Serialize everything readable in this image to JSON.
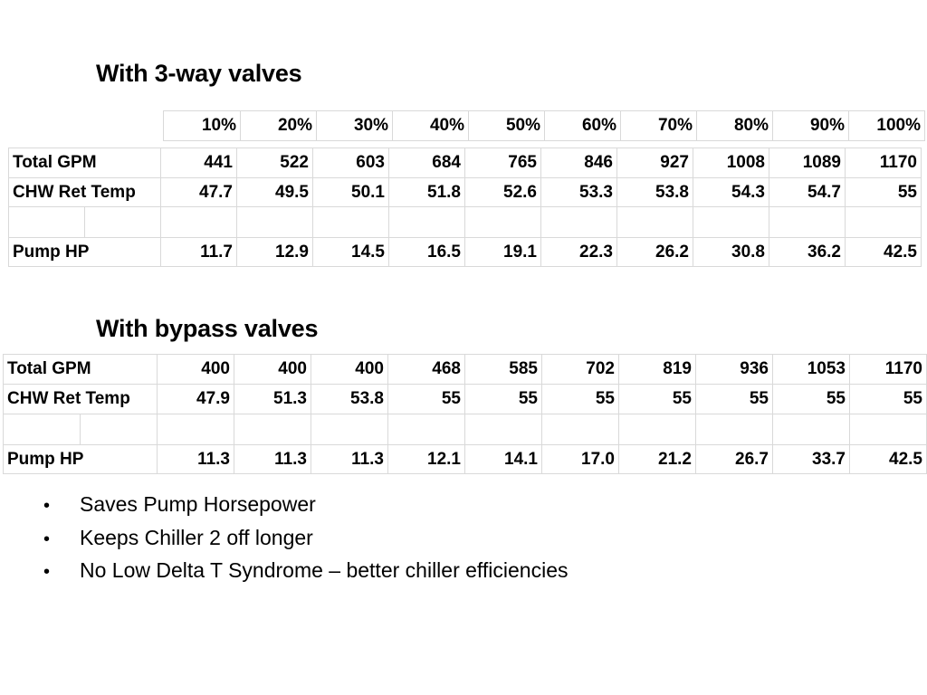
{
  "section1": {
    "heading": "With 3-way valves",
    "percent_headers": [
      "10%",
      "20%",
      "30%",
      "40%",
      "50%",
      "60%",
      "70%",
      "80%",
      "90%",
      "100%"
    ],
    "rows": [
      {
        "label": "Total GPM",
        "values": [
          "441",
          "522",
          "603",
          "684",
          "765",
          "846",
          "927",
          "1008",
          "1089",
          "1170"
        ]
      },
      {
        "label": "CHW Ret Temp",
        "values": [
          "47.7",
          "49.5",
          "50.1",
          "51.8",
          "52.6",
          "53.3",
          "53.8",
          "54.3",
          "54.7",
          "55"
        ]
      },
      {
        "label": "",
        "values": [
          "",
          "",
          "",
          "",
          "",
          "",
          "",
          "",
          "",
          ""
        ]
      },
      {
        "label": "Pump HP",
        "values": [
          "11.7",
          "12.9",
          "14.5",
          "16.5",
          "19.1",
          "22.3",
          "26.2",
          "30.8",
          "36.2",
          "42.5"
        ]
      }
    ]
  },
  "section2": {
    "heading": "With bypass valves",
    "rows": [
      {
        "label": "Total GPM",
        "values": [
          "400",
          "400",
          "400",
          "468",
          "585",
          "702",
          "819",
          "936",
          "1053",
          "1170"
        ]
      },
      {
        "label": "CHW Ret Temp",
        "values": [
          "47.9",
          "51.3",
          "53.8",
          "55",
          "55",
          "55",
          "55",
          "55",
          "55",
          "55"
        ]
      },
      {
        "label": "",
        "values": [
          "",
          "",
          "",
          "",
          "",
          "",
          "",
          "",
          "",
          ""
        ]
      },
      {
        "label": "Pump HP",
        "values": [
          "11.3",
          "11.3",
          "11.3",
          "12.1",
          "14.1",
          "17.0",
          "21.2",
          "26.7",
          "33.7",
          "42.5"
        ]
      }
    ]
  },
  "bullet_symbol": "•",
  "bullets": [
    "Saves Pump Horsepower",
    "Keeps Chiller 2 off longer",
    "No Low Delta T Syndrome – better chiller efficiencies"
  ]
}
